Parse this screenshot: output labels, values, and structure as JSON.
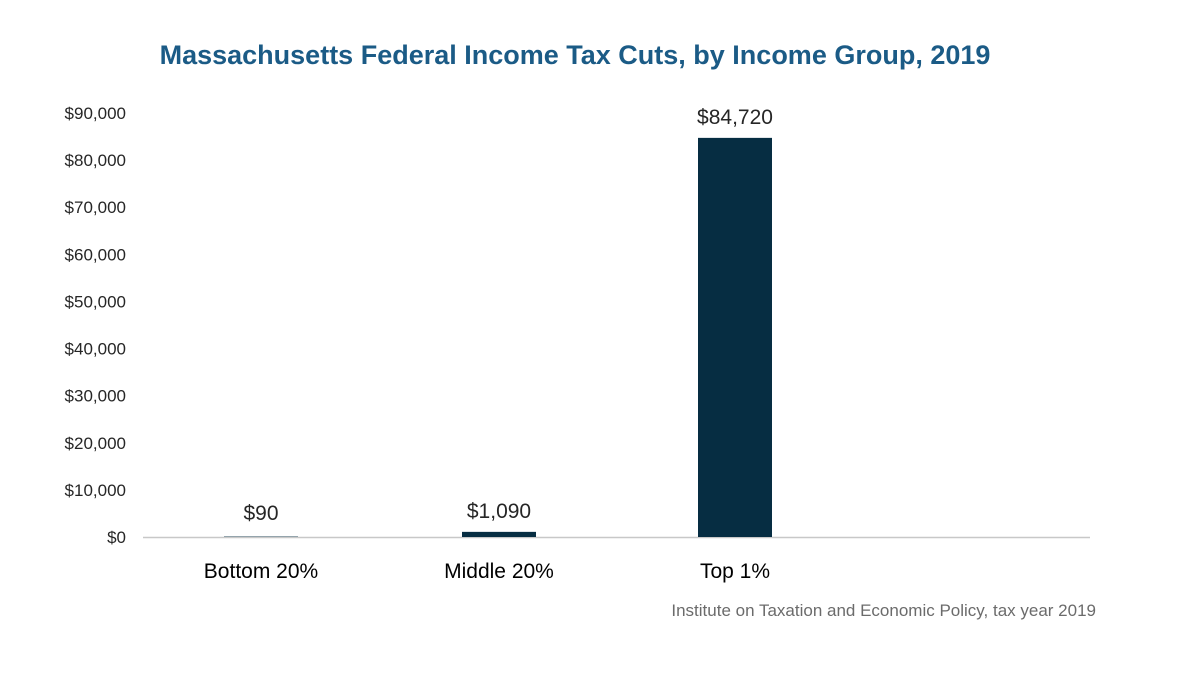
{
  "chart_data": {
    "type": "bar",
    "title": "Massachusetts Federal Income Tax Cuts, by Income Group, 2019",
    "categories": [
      "Bottom 20%",
      "Middle 20%",
      "Top 1%"
    ],
    "values": [
      90,
      1090,
      84720
    ],
    "data_labels": [
      "$90",
      "$1,090",
      "$84,720"
    ],
    "ylim": [
      0,
      90000
    ],
    "yticks": [
      0,
      10000,
      20000,
      30000,
      40000,
      50000,
      60000,
      70000,
      80000,
      90000
    ],
    "ytick_labels": [
      "$0",
      "$10,000",
      "$20,000",
      "$30,000",
      "$40,000",
      "$50,000",
      "$60,000",
      "$70,000",
      "$80,000",
      "$90,000"
    ],
    "xlabel": "",
    "ylabel": "",
    "grid": false,
    "legend": "none",
    "bar_color": "#062d42",
    "title_color": "#1b5b86",
    "source": "Institute on Taxation and Economic Policy, tax year 2019"
  }
}
